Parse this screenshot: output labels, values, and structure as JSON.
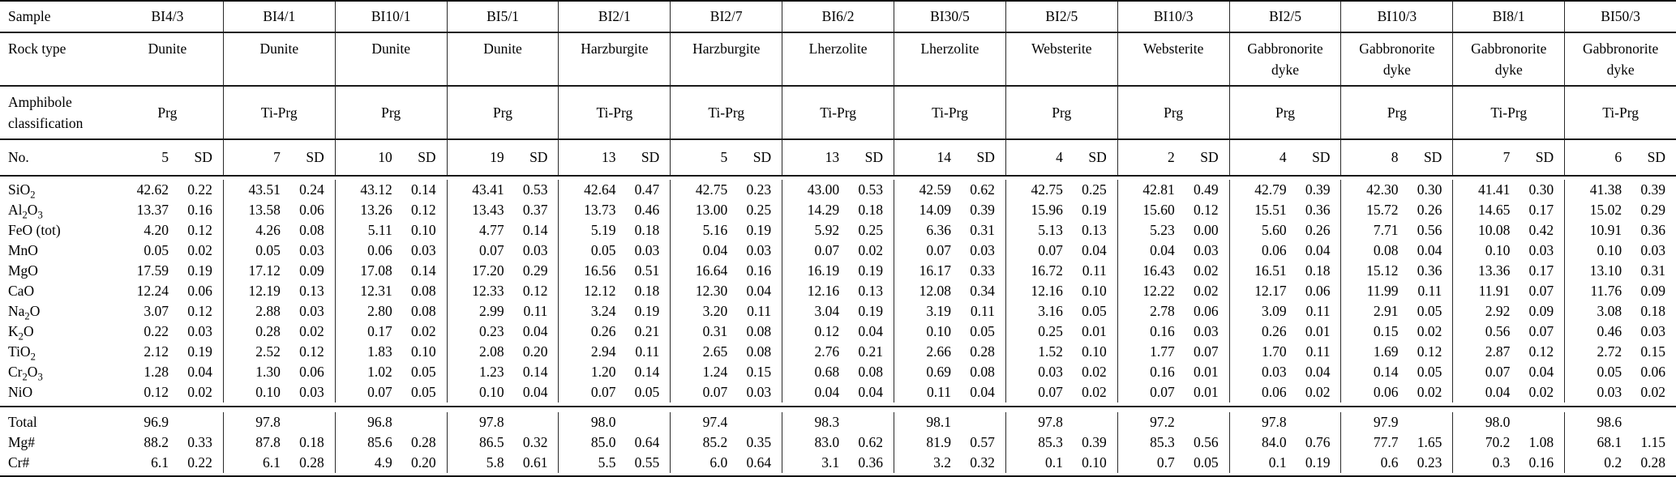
{
  "table": {
    "row_labels": {
      "sample": "Sample",
      "rock_type": "Rock type",
      "amphibole_line1": "Amphibole",
      "amphibole_line2": "classification",
      "no": "No.",
      "total": "Total",
      "mg_number": "Mg#",
      "cr_number": "Cr#"
    },
    "sd_header": "SD",
    "oxide_labels": [
      [
        [
          "SiO",
          false
        ],
        [
          "2",
          true
        ]
      ],
      [
        [
          "Al",
          false
        ],
        [
          "2",
          true
        ],
        [
          "O",
          false
        ],
        [
          "3",
          true
        ]
      ],
      [
        [
          "FeO (tot)",
          false
        ]
      ],
      [
        [
          "MnO",
          false
        ]
      ],
      [
        [
          "MgO",
          false
        ]
      ],
      [
        [
          "CaO",
          false
        ]
      ],
      [
        [
          "Na",
          false
        ],
        [
          "2",
          true
        ],
        [
          "O",
          false
        ]
      ],
      [
        [
          "K",
          false
        ],
        [
          "2",
          true
        ],
        [
          "O",
          false
        ]
      ],
      [
        [
          "TiO",
          false
        ],
        [
          "2",
          true
        ]
      ],
      [
        [
          "Cr",
          false
        ],
        [
          "2",
          true
        ],
        [
          "O",
          false
        ],
        [
          "3",
          true
        ]
      ],
      [
        [
          "NiO",
          false
        ]
      ]
    ],
    "columns": [
      {
        "sample": "BI4/3",
        "rock_line1": "Dunite",
        "rock_line2": "",
        "classification": "Prg",
        "n": "5",
        "oxides": [
          [
            "42.62",
            "0.22"
          ],
          [
            "13.37",
            "0.16"
          ],
          [
            "4.20",
            "0.12"
          ],
          [
            "0.05",
            "0.02"
          ],
          [
            "17.59",
            "0.19"
          ],
          [
            "12.24",
            "0.06"
          ],
          [
            "3.07",
            "0.12"
          ],
          [
            "0.22",
            "0.03"
          ],
          [
            "2.12",
            "0.19"
          ],
          [
            "1.28",
            "0.04"
          ],
          [
            "0.12",
            "0.02"
          ]
        ],
        "total": "96.9",
        "mg": [
          "88.2",
          "0.33"
        ],
        "cr": [
          "6.1",
          "0.22"
        ]
      },
      {
        "sample": "BI4/1",
        "rock_line1": "Dunite",
        "rock_line2": "",
        "classification": "Ti-Prg",
        "n": "7",
        "oxides": [
          [
            "43.51",
            "0.24"
          ],
          [
            "13.58",
            "0.06"
          ],
          [
            "4.26",
            "0.08"
          ],
          [
            "0.05",
            "0.03"
          ],
          [
            "17.12",
            "0.09"
          ],
          [
            "12.19",
            "0.13"
          ],
          [
            "2.88",
            "0.03"
          ],
          [
            "0.28",
            "0.02"
          ],
          [
            "2.52",
            "0.12"
          ],
          [
            "1.30",
            "0.06"
          ],
          [
            "0.10",
            "0.03"
          ]
        ],
        "total": "97.8",
        "mg": [
          "87.8",
          "0.18"
        ],
        "cr": [
          "6.1",
          "0.28"
        ]
      },
      {
        "sample": "BI10/1",
        "rock_line1": "Dunite",
        "rock_line2": "",
        "classification": "Prg",
        "n": "10",
        "oxides": [
          [
            "43.12",
            "0.14"
          ],
          [
            "13.26",
            "0.12"
          ],
          [
            "5.11",
            "0.10"
          ],
          [
            "0.06",
            "0.03"
          ],
          [
            "17.08",
            "0.14"
          ],
          [
            "12.31",
            "0.08"
          ],
          [
            "2.80",
            "0.08"
          ],
          [
            "0.17",
            "0.02"
          ],
          [
            "1.83",
            "0.10"
          ],
          [
            "1.02",
            "0.05"
          ],
          [
            "0.07",
            "0.05"
          ]
        ],
        "total": "96.8",
        "mg": [
          "85.6",
          "0.28"
        ],
        "cr": [
          "4.9",
          "0.20"
        ]
      },
      {
        "sample": "BI5/1",
        "rock_line1": "Dunite",
        "rock_line2": "",
        "classification": "Prg",
        "n": "19",
        "oxides": [
          [
            "43.41",
            "0.53"
          ],
          [
            "13.43",
            "0.37"
          ],
          [
            "4.77",
            "0.14"
          ],
          [
            "0.07",
            "0.03"
          ],
          [
            "17.20",
            "0.29"
          ],
          [
            "12.33",
            "0.12"
          ],
          [
            "2.99",
            "0.11"
          ],
          [
            "0.23",
            "0.04"
          ],
          [
            "2.08",
            "0.20"
          ],
          [
            "1.23",
            "0.14"
          ],
          [
            "0.10",
            "0.04"
          ]
        ],
        "total": "97.8",
        "mg": [
          "86.5",
          "0.32"
        ],
        "cr": [
          "5.8",
          "0.61"
        ]
      },
      {
        "sample": "BI2/1",
        "rock_line1": "Harzburgite",
        "rock_line2": "",
        "classification": "Ti-Prg",
        "n": "13",
        "oxides": [
          [
            "42.64",
            "0.47"
          ],
          [
            "13.73",
            "0.46"
          ],
          [
            "5.19",
            "0.18"
          ],
          [
            "0.05",
            "0.03"
          ],
          [
            "16.56",
            "0.51"
          ],
          [
            "12.12",
            "0.18"
          ],
          [
            "3.24",
            "0.19"
          ],
          [
            "0.26",
            "0.21"
          ],
          [
            "2.94",
            "0.11"
          ],
          [
            "1.20",
            "0.14"
          ],
          [
            "0.07",
            "0.05"
          ]
        ],
        "total": "98.0",
        "mg": [
          "85.0",
          "0.64"
        ],
        "cr": [
          "5.5",
          "0.55"
        ]
      },
      {
        "sample": "BI2/7",
        "rock_line1": "Harzburgite",
        "rock_line2": "",
        "classification": "Ti-Prg",
        "n": "5",
        "oxides": [
          [
            "42.75",
            "0.23"
          ],
          [
            "13.00",
            "0.25"
          ],
          [
            "5.16",
            "0.19"
          ],
          [
            "0.04",
            "0.03"
          ],
          [
            "16.64",
            "0.16"
          ],
          [
            "12.30",
            "0.04"
          ],
          [
            "3.20",
            "0.11"
          ],
          [
            "0.31",
            "0.08"
          ],
          [
            "2.65",
            "0.08"
          ],
          [
            "1.24",
            "0.15"
          ],
          [
            "0.07",
            "0.03"
          ]
        ],
        "total": "97.4",
        "mg": [
          "85.2",
          "0.35"
        ],
        "cr": [
          "6.0",
          "0.64"
        ]
      },
      {
        "sample": "BI6/2",
        "rock_line1": "Lherzolite",
        "rock_line2": "",
        "classification": "Ti-Prg",
        "n": "13",
        "oxides": [
          [
            "43.00",
            "0.53"
          ],
          [
            "14.29",
            "0.18"
          ],
          [
            "5.92",
            "0.25"
          ],
          [
            "0.07",
            "0.02"
          ],
          [
            "16.19",
            "0.19"
          ],
          [
            "12.16",
            "0.13"
          ],
          [
            "3.04",
            "0.19"
          ],
          [
            "0.12",
            "0.04"
          ],
          [
            "2.76",
            "0.21"
          ],
          [
            "0.68",
            "0.08"
          ],
          [
            "0.04",
            "0.04"
          ]
        ],
        "total": "98.3",
        "mg": [
          "83.0",
          "0.62"
        ],
        "cr": [
          "3.1",
          "0.36"
        ]
      },
      {
        "sample": "BI30/5",
        "rock_line1": "Lherzolite",
        "rock_line2": "",
        "classification": "Ti-Prg",
        "n": "14",
        "oxides": [
          [
            "42.59",
            "0.62"
          ],
          [
            "14.09",
            "0.39"
          ],
          [
            "6.36",
            "0.31"
          ],
          [
            "0.07",
            "0.03"
          ],
          [
            "16.17",
            "0.33"
          ],
          [
            "12.08",
            "0.34"
          ],
          [
            "3.19",
            "0.11"
          ],
          [
            "0.10",
            "0.05"
          ],
          [
            "2.66",
            "0.28"
          ],
          [
            "0.69",
            "0.08"
          ],
          [
            "0.11",
            "0.04"
          ]
        ],
        "total": "98.1",
        "mg": [
          "81.9",
          "0.57"
        ],
        "cr": [
          "3.2",
          "0.32"
        ]
      },
      {
        "sample": "BI2/5",
        "rock_line1": "Websterite",
        "rock_line2": "",
        "classification": "Prg",
        "n": "4",
        "oxides": [
          [
            "42.75",
            "0.25"
          ],
          [
            "15.96",
            "0.19"
          ],
          [
            "5.13",
            "0.13"
          ],
          [
            "0.07",
            "0.04"
          ],
          [
            "16.72",
            "0.11"
          ],
          [
            "12.16",
            "0.10"
          ],
          [
            "3.16",
            "0.05"
          ],
          [
            "0.25",
            "0.01"
          ],
          [
            "1.52",
            "0.10"
          ],
          [
            "0.03",
            "0.02"
          ],
          [
            "0.07",
            "0.02"
          ]
        ],
        "total": "97.8",
        "mg": [
          "85.3",
          "0.39"
        ],
        "cr": [
          "0.1",
          "0.10"
        ]
      },
      {
        "sample": "BI10/3",
        "rock_line1": "Websterite",
        "rock_line2": "",
        "classification": "Prg",
        "n": "2",
        "oxides": [
          [
            "42.81",
            "0.49"
          ],
          [
            "15.60",
            "0.12"
          ],
          [
            "5.23",
            "0.00"
          ],
          [
            "0.04",
            "0.03"
          ],
          [
            "16.43",
            "0.02"
          ],
          [
            "12.22",
            "0.02"
          ],
          [
            "2.78",
            "0.06"
          ],
          [
            "0.16",
            "0.03"
          ],
          [
            "1.77",
            "0.07"
          ],
          [
            "0.16",
            "0.01"
          ],
          [
            "0.07",
            "0.01"
          ]
        ],
        "total": "97.2",
        "mg": [
          "85.3",
          "0.56"
        ],
        "cr": [
          "0.7",
          "0.05"
        ]
      },
      {
        "sample": "BI2/5",
        "rock_line1": "Gabbronorite",
        "rock_line2": "dyke",
        "classification": "Prg",
        "n": "4",
        "oxides": [
          [
            "42.79",
            "0.39"
          ],
          [
            "15.51",
            "0.36"
          ],
          [
            "5.60",
            "0.26"
          ],
          [
            "0.06",
            "0.04"
          ],
          [
            "16.51",
            "0.18"
          ],
          [
            "12.17",
            "0.06"
          ],
          [
            "3.09",
            "0.11"
          ],
          [
            "0.26",
            "0.01"
          ],
          [
            "1.70",
            "0.11"
          ],
          [
            "0.03",
            "0.04"
          ],
          [
            "0.06",
            "0.02"
          ]
        ],
        "total": "97.8",
        "mg": [
          "84.0",
          "0.76"
        ],
        "cr": [
          "0.1",
          "0.19"
        ]
      },
      {
        "sample": "BI10/3",
        "rock_line1": "Gabbronorite",
        "rock_line2": "dyke",
        "classification": "Prg",
        "n": "8",
        "oxides": [
          [
            "42.30",
            "0.30"
          ],
          [
            "15.72",
            "0.26"
          ],
          [
            "7.71",
            "0.56"
          ],
          [
            "0.08",
            "0.04"
          ],
          [
            "15.12",
            "0.36"
          ],
          [
            "11.99",
            "0.11"
          ],
          [
            "2.91",
            "0.05"
          ],
          [
            "0.15",
            "0.02"
          ],
          [
            "1.69",
            "0.12"
          ],
          [
            "0.14",
            "0.05"
          ],
          [
            "0.06",
            "0.02"
          ]
        ],
        "total": "97.9",
        "mg": [
          "77.7",
          "1.65"
        ],
        "cr": [
          "0.6",
          "0.23"
        ]
      },
      {
        "sample": "BI8/1",
        "rock_line1": "Gabbronorite",
        "rock_line2": "dyke",
        "classification": "Ti-Prg",
        "n": "7",
        "oxides": [
          [
            "41.41",
            "0.30"
          ],
          [
            "14.65",
            "0.17"
          ],
          [
            "10.08",
            "0.42"
          ],
          [
            "0.10",
            "0.03"
          ],
          [
            "13.36",
            "0.17"
          ],
          [
            "11.91",
            "0.07"
          ],
          [
            "2.92",
            "0.09"
          ],
          [
            "0.56",
            "0.07"
          ],
          [
            "2.87",
            "0.12"
          ],
          [
            "0.07",
            "0.04"
          ],
          [
            "0.04",
            "0.02"
          ]
        ],
        "total": "98.0",
        "mg": [
          "70.2",
          "1.08"
        ],
        "cr": [
          "0.3",
          "0.16"
        ]
      },
      {
        "sample": "BI50/3",
        "rock_line1": "Gabbronorite",
        "rock_line2": "dyke",
        "classification": "Ti-Prg",
        "n": "6",
        "oxides": [
          [
            "41.38",
            "0.39"
          ],
          [
            "15.02",
            "0.29"
          ],
          [
            "10.91",
            "0.36"
          ],
          [
            "0.10",
            "0.03"
          ],
          [
            "13.10",
            "0.31"
          ],
          [
            "11.76",
            "0.09"
          ],
          [
            "3.08",
            "0.18"
          ],
          [
            "0.46",
            "0.03"
          ],
          [
            "2.72",
            "0.15"
          ],
          [
            "0.05",
            "0.06"
          ],
          [
            "0.03",
            "0.02"
          ]
        ],
        "total": "98.6",
        "mg": [
          "68.1",
          "1.15"
        ],
        "cr": [
          "0.2",
          "0.28"
        ]
      }
    ]
  }
}
